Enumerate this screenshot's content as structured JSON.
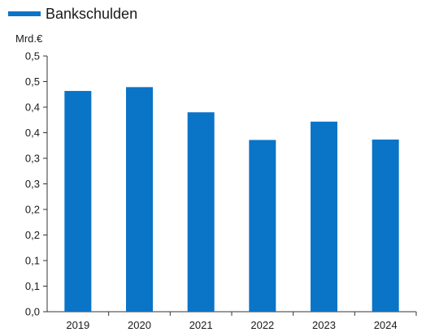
{
  "legend": {
    "label": "Bankschulden"
  },
  "colors": {
    "bar": "#0a74c7",
    "axis": "#333333"
  },
  "chart_data": {
    "type": "bar",
    "title": "",
    "xlabel": "",
    "ylabel": "Mrd.€",
    "categories": [
      "2019",
      "2020",
      "2021",
      "2022",
      "2023",
      "2024"
    ],
    "series": [
      {
        "name": "Bankschulden",
        "values": [
          0.518,
          0.527,
          0.468,
          0.403,
          0.446,
          0.404
        ]
      }
    ],
    "ylim": [
      0.0,
      0.6
    ],
    "y_tick_labels": [
      "0,0",
      "0,1",
      "0,1",
      "0,2",
      "0,2",
      "0,3",
      "0,3",
      "0,4",
      "0,4",
      "0,5",
      "0,5"
    ],
    "grid": false,
    "legend_position": "top-left"
  }
}
